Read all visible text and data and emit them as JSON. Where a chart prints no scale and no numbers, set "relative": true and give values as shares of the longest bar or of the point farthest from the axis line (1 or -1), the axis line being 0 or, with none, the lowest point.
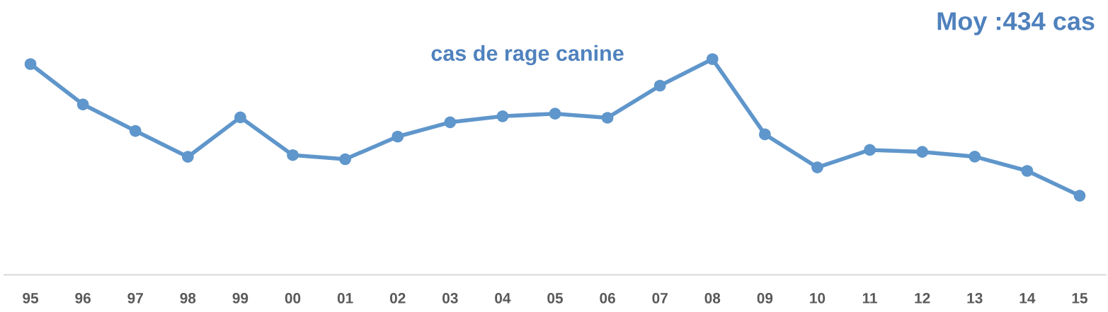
{
  "chart_data": {
    "type": "line",
    "title": "cas de rage canine",
    "annotations": [
      "Moy :434 cas"
    ],
    "categories": [
      "95",
      "96",
      "97",
      "98",
      "99",
      "00",
      "01",
      "02",
      "03",
      "04",
      "05",
      "06",
      "07",
      "08",
      "09",
      "10",
      "11",
      "12",
      "13",
      "14",
      "15"
    ],
    "relative": true,
    "marker": "circle",
    "line_style": "solid",
    "series": [
      {
        "color": "#5f96cb",
        "values": [
          0.977,
          0.79,
          0.667,
          0.547,
          0.73,
          0.555,
          0.536,
          0.641,
          0.707,
          0.735,
          0.747,
          0.728,
          0.877,
          1,
          0.651,
          0.498,
          0.579,
          0.57,
          0.548,
          0.482,
          0.367
        ]
      }
    ]
  }
}
